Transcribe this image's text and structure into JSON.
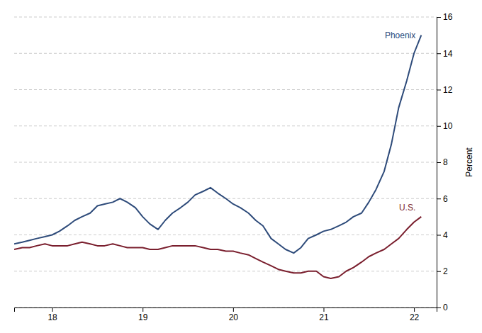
{
  "chart_data": {
    "type": "line",
    "y_label": "Percent",
    "x": [
      17.58,
      17.67,
      17.75,
      17.83,
      17.92,
      18.0,
      18.08,
      18.17,
      18.25,
      18.33,
      18.42,
      18.5,
      18.58,
      18.67,
      18.75,
      18.83,
      18.92,
      19.0,
      19.08,
      19.17,
      19.25,
      19.33,
      19.42,
      19.5,
      19.58,
      19.67,
      19.75,
      19.83,
      19.92,
      20.0,
      20.08,
      20.17,
      20.25,
      20.33,
      20.42,
      20.5,
      20.58,
      20.67,
      20.75,
      20.83,
      20.92,
      21.0,
      21.08,
      21.17,
      21.25,
      21.33,
      21.42,
      21.5,
      21.58,
      21.67,
      21.75,
      21.83,
      21.92,
      22.0,
      22.08
    ],
    "xlim": [
      17.58,
      22.25
    ],
    "xticks": [
      18,
      19,
      20,
      21,
      22
    ],
    "ylim": [
      0,
      16
    ],
    "yticks": [
      0,
      2,
      4,
      6,
      8,
      10,
      12,
      14,
      16
    ],
    "grid": true,
    "series": [
      {
        "name": "Phoenix",
        "color": "#2E4B7A",
        "values": [
          3.5,
          3.6,
          3.7,
          3.8,
          3.9,
          4.0,
          4.2,
          4.5,
          4.8,
          5.0,
          5.2,
          5.6,
          5.7,
          5.8,
          6.0,
          5.8,
          5.5,
          5.0,
          4.6,
          4.3,
          4.8,
          5.2,
          5.5,
          5.8,
          6.2,
          6.4,
          6.6,
          6.3,
          6.0,
          5.7,
          5.5,
          5.2,
          4.8,
          4.5,
          3.8,
          3.5,
          3.2,
          3.0,
          3.3,
          3.8,
          4.0,
          4.2,
          4.3,
          4.5,
          4.7,
          5.0,
          5.2,
          5.8,
          6.5,
          7.5,
          9.0,
          11.0,
          12.5,
          14.0,
          15.0
        ]
      },
      {
        "name": "U.S.",
        "color": "#7A1F2E",
        "values": [
          3.2,
          3.3,
          3.3,
          3.4,
          3.5,
          3.4,
          3.4,
          3.4,
          3.5,
          3.6,
          3.5,
          3.4,
          3.4,
          3.5,
          3.4,
          3.3,
          3.3,
          3.3,
          3.2,
          3.2,
          3.3,
          3.4,
          3.4,
          3.4,
          3.4,
          3.3,
          3.2,
          3.2,
          3.1,
          3.1,
          3.0,
          2.9,
          2.7,
          2.5,
          2.3,
          2.1,
          2.0,
          1.9,
          1.9,
          2.0,
          2.0,
          1.7,
          1.6,
          1.7,
          2.0,
          2.2,
          2.5,
          2.8,
          3.0,
          3.2,
          3.5,
          3.8,
          4.3,
          4.7,
          5.0
        ]
      }
    ]
  }
}
